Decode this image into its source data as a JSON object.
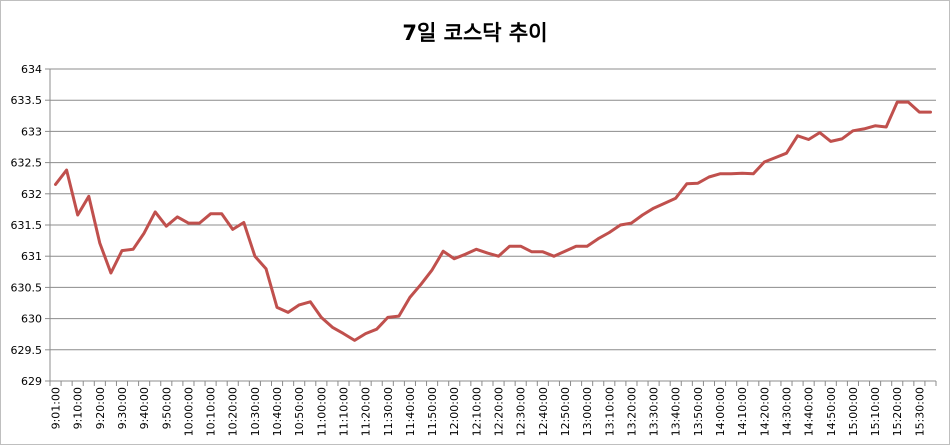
{
  "chart_data": {
    "type": "line",
    "title": "7일 코스닥 추이",
    "xlabel": "",
    "ylabel": "",
    "ylim": [
      629,
      634
    ],
    "yticks": [
      "629",
      "629.5",
      "630",
      "630.5",
      "631",
      "631.5",
      "632",
      "632.5",
      "633",
      "633.5",
      "634"
    ],
    "grid": true,
    "legend": "none",
    "line_color": "#c0504d",
    "x": [
      "9:01:00",
      "9:05:00",
      "9:10:00",
      "9:15:00",
      "9:20:00",
      "9:25:00",
      "9:30:00",
      "9:35:00",
      "9:40:00",
      "9:45:00",
      "9:50:00",
      "9:55:00",
      "10:00:00",
      "10:05:00",
      "10:10:00",
      "10:15:00",
      "10:20:00",
      "10:25:00",
      "10:30:00",
      "10:35:00",
      "10:40:00",
      "10:45:00",
      "10:50:00",
      "10:55:00",
      "11:00:00",
      "11:05:00",
      "11:10:00",
      "11:15:00",
      "11:20:00",
      "11:25:00",
      "11:30:00",
      "11:35:00",
      "11:40:00",
      "11:45:00",
      "11:50:00",
      "11:55:00",
      "12:00:00",
      "12:05:00",
      "12:10:00",
      "12:15:00",
      "12:20:00",
      "12:25:00",
      "12:30:00",
      "12:35:00",
      "12:40:00",
      "12:45:00",
      "12:50:00",
      "12:55:00",
      "13:00:00",
      "13:05:00",
      "13:10:00",
      "13:15:00",
      "13:20:00",
      "13:25:00",
      "13:30:00",
      "13:35:00",
      "13:40:00",
      "13:45:00",
      "13:50:00",
      "13:55:00",
      "14:00:00",
      "14:05:00",
      "14:10:00",
      "14:15:00",
      "14:20:00",
      "14:25:00",
      "14:30:00",
      "14:35:00",
      "14:40:00",
      "14:45:00",
      "14:50:00",
      "14:55:00",
      "15:00:00",
      "15:05:00",
      "15:10:00",
      "15:15:00",
      "15:20:00",
      "15:25:00",
      "15:30:00",
      "15:35:00"
    ],
    "xtick_labels": [
      "9:01:00",
      "9:10:00",
      "9:20:00",
      "9:30:00",
      "9:40:00",
      "9:50:00",
      "10:00:00",
      "10:10:00",
      "10:20:00",
      "10:30:00",
      "10:40:00",
      "10:50:00",
      "11:00:00",
      "11:10:00",
      "11:20:00",
      "11:30:00",
      "11:40:00",
      "11:50:00",
      "12:00:00",
      "12:10:00",
      "12:20:00",
      "12:30:00",
      "12:40:00",
      "12:50:00",
      "13:00:00",
      "13:10:00",
      "13:20:00",
      "13:30:00",
      "13:40:00",
      "13:50:00",
      "14:00:00",
      "14:10:00",
      "14:20:00",
      "14:30:00",
      "14:40:00",
      "14:50:00",
      "15:00:00",
      "15:10:00",
      "15:20:00",
      "15:30:00"
    ],
    "values": [
      632.15,
      632.38,
      631.66,
      631.96,
      631.21,
      630.73,
      631.09,
      631.11,
      631.37,
      631.71,
      631.48,
      631.63,
      631.53,
      631.53,
      631.68,
      631.68,
      631.43,
      631.54,
      631.0,
      630.8,
      630.18,
      630.1,
      630.22,
      630.27,
      630.02,
      629.86,
      629.76,
      629.65,
      629.76,
      629.83,
      630.02,
      630.04,
      630.34,
      630.55,
      630.78,
      631.08,
      630.96,
      631.03,
      631.11,
      631.05,
      631.0,
      631.16,
      631.16,
      631.07,
      631.07,
      631.0,
      631.08,
      631.16,
      631.16,
      631.28,
      631.38,
      631.5,
      631.53,
      631.66,
      631.77,
      631.85,
      631.93,
      632.16,
      632.17,
      632.27,
      632.32,
      632.32,
      632.33,
      632.32,
      632.51,
      632.58,
      632.65,
      632.93,
      632.87,
      632.98,
      632.84,
      632.88,
      633.01,
      633.04,
      633.09,
      633.07,
      633.47,
      633.47,
      633.31,
      633.31
    ]
  }
}
